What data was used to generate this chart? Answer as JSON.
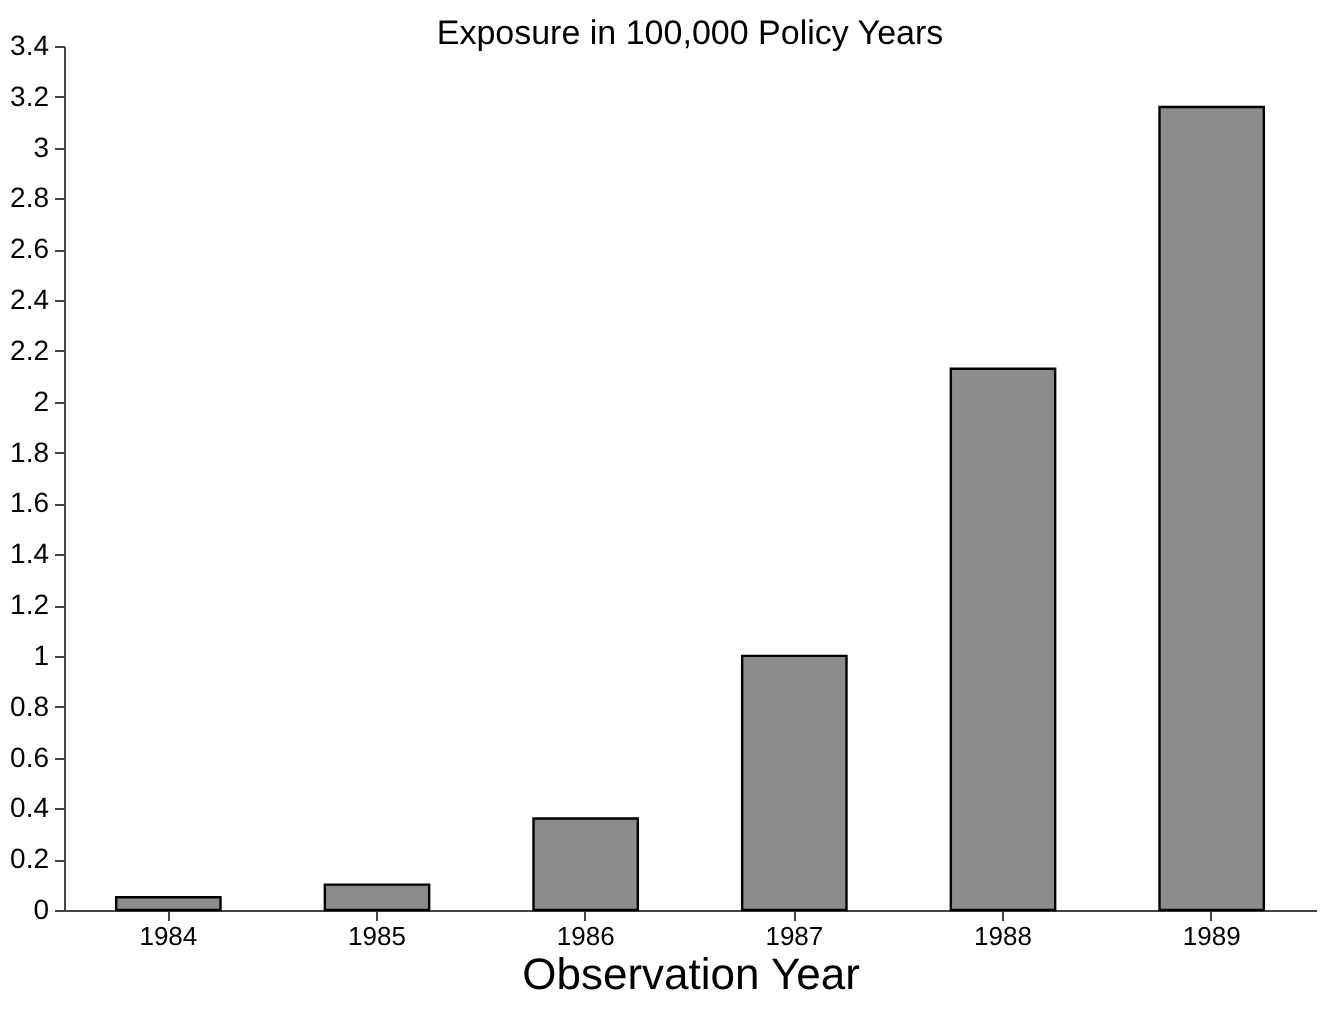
{
  "chart_data": {
    "type": "bar",
    "title": "Exposure in 100,000 Policy Years",
    "xlabel": "Observation Year",
    "categories": [
      "1984",
      "1985",
      "1986",
      "1987",
      "1988",
      "1989"
    ],
    "values": [
      0.05,
      0.1,
      0.36,
      1.0,
      2.13,
      3.16
    ],
    "color": "#8c8c8c",
    "ylim": [
      0,
      3.4
    ],
    "yticks": [
      0,
      0.2,
      0.4,
      0.6,
      0.8,
      1,
      1.2,
      1.4,
      1.6,
      1.8,
      2,
      2.2,
      2.4,
      2.6,
      2.8,
      3,
      3.2,
      3.4
    ],
    "grid": false
  }
}
